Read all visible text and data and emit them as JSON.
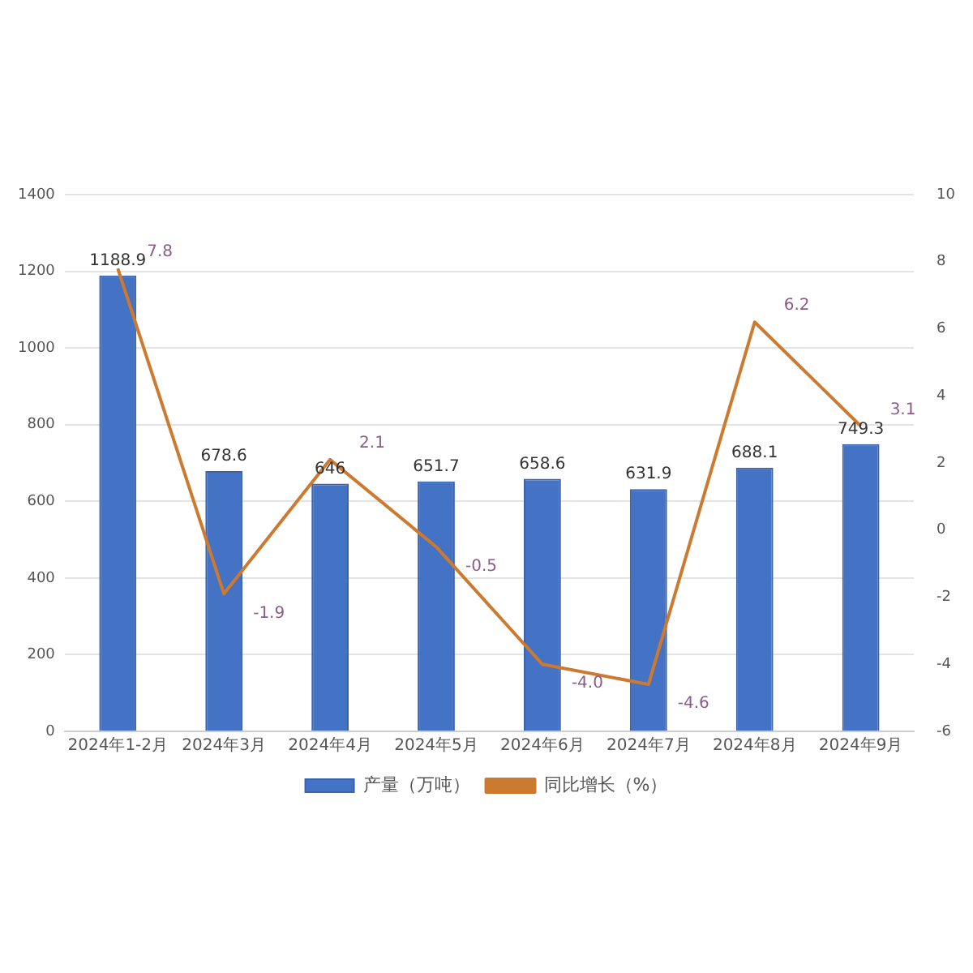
{
  "chart_data": {
    "type": "bar",
    "categories": [
      "2024年1-2月",
      "2024年3月",
      "2024年4月",
      "2024年5月",
      "2024年6月",
      "2024年7月",
      "2024年8月",
      "2024年9月"
    ],
    "series": [
      {
        "name": "产量（万吨）",
        "color": "#4472c4",
        "values": [
          1188.9,
          678.6,
          646,
          651.7,
          658.6,
          631.9,
          688.1,
          749.3
        ]
      },
      {
        "name": "同比增长（%）",
        "type": "line",
        "axis": "y2",
        "color": "#cc7a30",
        "values": [
          7.8,
          -1.9,
          2.1,
          -0.5,
          -4.0,
          -4.6,
          6.2,
          3.1
        ],
        "value_labels": [
          "7.8",
          "-1.9",
          "2.1",
          "-0.5",
          "-4.0",
          "-4.6",
          "6.2",
          "3.1"
        ]
      }
    ],
    "ylim": [
      0,
      1400
    ],
    "yticks": [
      0,
      200,
      400,
      600,
      800,
      1000,
      1200,
      1400
    ],
    "y2lim": [
      -6,
      10
    ],
    "y2ticks": [
      -6,
      -4,
      -2,
      0,
      2,
      4,
      6,
      8,
      10
    ],
    "grid": "y",
    "legend": "bottom",
    "data_labels": true,
    "marker": "none"
  }
}
